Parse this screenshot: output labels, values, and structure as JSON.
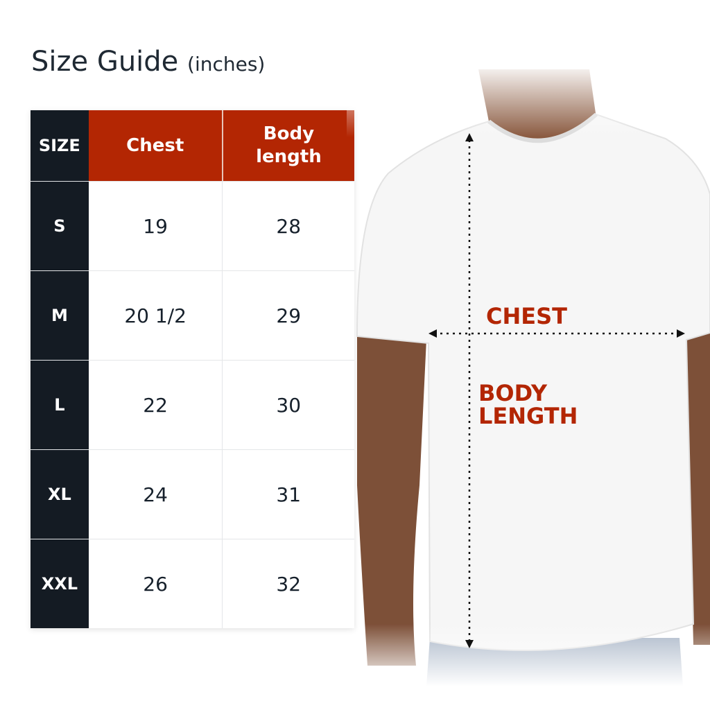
{
  "title": {
    "main": "Size Guide",
    "unit": "(inches)"
  },
  "table": {
    "headers": [
      "SIZE",
      "Chest",
      "Body length"
    ],
    "rows": [
      {
        "size": "S",
        "chest": "19",
        "length": "28"
      },
      {
        "size": "M",
        "chest": "20 1/2",
        "length": "29"
      },
      {
        "size": "L",
        "chest": "22",
        "length": "30"
      },
      {
        "size": "XL",
        "chest": "24",
        "length": "31"
      },
      {
        "size": "XXL",
        "chest": "26",
        "length": "32"
      }
    ]
  },
  "diagram": {
    "chest_label": "CHEST",
    "body_length_label_1": "BODY",
    "body_length_label_2": "LENGTH"
  },
  "colors": {
    "accent": "#b32603",
    "dark": "#141b23"
  }
}
